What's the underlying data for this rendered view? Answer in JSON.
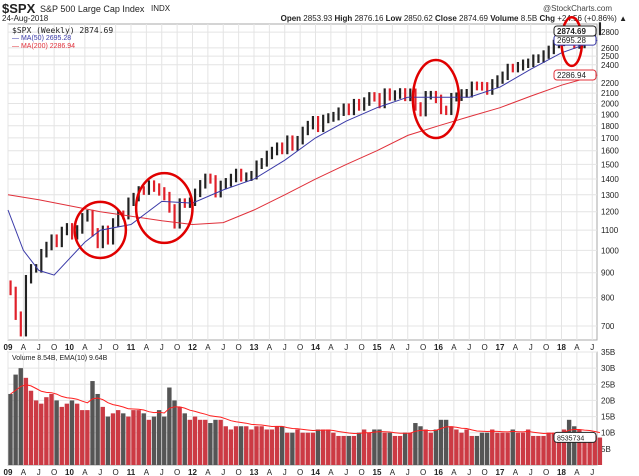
{
  "header": {
    "symbol": "$SPX",
    "name": "S&P 500 Large Cap Index",
    "exchange": "INDX",
    "date": "24-Aug-2018",
    "brand": "@StockCharts.com",
    "open_label": "Open",
    "open": "2853.93",
    "high_label": "High",
    "high": "2876.16",
    "low_label": "Low",
    "low": "2850.62",
    "close_label": "Close",
    "close": "2874.69",
    "volume_label": "Volume",
    "volume": "8.5B",
    "chg_label": "Chg",
    "chg": "+24.56 (+0.86%)"
  },
  "chart_data": [
    {
      "type": "line",
      "legend": [
        "$SPX (Weekly) 2874.69",
        "MA(50) 2695.28",
        "MA(200) 2286.94"
      ],
      "legend_placement": "top-left",
      "scale": "log",
      "ylim": [
        650,
        2950
      ],
      "grid": true,
      "yticks": [
        700,
        800,
        900,
        1000,
        1100,
        1200,
        1300,
        1400,
        1500,
        1600,
        1700,
        1800,
        1900,
        2000,
        2100,
        2200,
        2400,
        2500,
        2600,
        2800
      ],
      "xticks": [
        "09",
        "A",
        "J",
        "O",
        "10",
        "A",
        "J",
        "O",
        "11",
        "A",
        "J",
        "O",
        "12",
        "A",
        "J",
        "O",
        "13",
        "A",
        "J",
        "O",
        "14",
        "A",
        "J",
        "O",
        "15",
        "A",
        "J",
        "O",
        "16",
        "A",
        "J",
        "O",
        "17",
        "A",
        "J",
        "O",
        "18",
        "A",
        "J"
      ],
      "last_labels": {
        "price": "2874.69",
        "ma50": "2695.28",
        "ma200": "2286.94"
      },
      "colors": {
        "up": "#222222",
        "down": "#e0202a",
        "ma50": "#3a3aa8",
        "ma200": "#e0303a",
        "annotation": "#e00000"
      },
      "start": "2009-01",
      "closes": [
        826,
        735,
        680,
        873,
        919,
        919,
        987,
        1021,
        1057,
        1036,
        1096,
        1115,
        1074,
        1104,
        1169,
        1187,
        1089,
        1031,
        1102,
        1049,
        1141,
        1183,
        1181,
        1258,
        1286,
        1327,
        1326,
        1364,
        1345,
        1321,
        1292,
        1219,
        1131,
        1253,
        1247,
        1258,
        1312,
        1366,
        1408,
        1398,
        1310,
        1362,
        1379,
        1407,
        1441,
        1412,
        1416,
        1426,
        1498,
        1515,
        1569,
        1598,
        1631,
        1606,
        1686,
        1633,
        1682,
        1757,
        1806,
        1848,
        1783,
        1859,
        1872,
        1884,
        1924,
        1960,
        1931,
        2003,
        1972,
        2018,
        2068,
        2059,
        1995,
        2105,
        2068,
        2086,
        2107,
        2063,
        2104,
        1972,
        1920,
        2079,
        2080,
        2044,
        1940,
        1932,
        2060,
        2065,
        2097,
        2099,
        2174,
        2171,
        2168,
        2126,
        2199,
        2239,
        2279,
        2364,
        2363,
        2384,
        2412,
        2423,
        2470,
        2472,
        2519,
        2575,
        2648,
        2674,
        2824,
        2714,
        2641,
        2648,
        2705,
        2718,
        2816,
        2875
      ],
      "ma50": [
        [
          "2009-01",
          1210
        ],
        [
          "2009-04",
          1000
        ],
        [
          "2009-07",
          910
        ],
        [
          "2009-10",
          890
        ],
        [
          "2010-04",
          1040
        ],
        [
          "2010-07",
          1100
        ],
        [
          "2011-01",
          1130
        ],
        [
          "2011-07",
          1260
        ],
        [
          "2012-01",
          1250
        ],
        [
          "2012-07",
          1330
        ],
        [
          "2013-01",
          1400
        ],
        [
          "2013-07",
          1530
        ],
        [
          "2014-01",
          1700
        ],
        [
          "2014-07",
          1840
        ],
        [
          "2015-01",
          1960
        ],
        [
          "2015-07",
          2060
        ],
        [
          "2016-01",
          2060
        ],
        [
          "2016-07",
          2060
        ],
        [
          "2017-01",
          2160
        ],
        [
          "2017-07",
          2350
        ],
        [
          "2018-01",
          2540
        ],
        [
          "2018-08",
          2695.28
        ]
      ],
      "ma200": [
        [
          "2009-01",
          1300
        ],
        [
          "2009-07",
          1270
        ],
        [
          "2010-07",
          1200
        ],
        [
          "2011-07",
          1150
        ],
        [
          "2012-01",
          1130
        ],
        [
          "2012-07",
          1140
        ],
        [
          "2013-01",
          1210
        ],
        [
          "2013-07",
          1300
        ],
        [
          "2014-01",
          1400
        ],
        [
          "2014-07",
          1500
        ],
        [
          "2015-01",
          1600
        ],
        [
          "2015-07",
          1720
        ],
        [
          "2016-01",
          1800
        ],
        [
          "2016-07",
          1880
        ],
        [
          "2017-01",
          1960
        ],
        [
          "2017-07",
          2070
        ],
        [
          "2018-01",
          2180
        ],
        [
          "2018-08",
          2286.94
        ]
      ],
      "annotations": [
        {
          "shape": "ellipse",
          "from": "2010-02",
          "to": "2010-12",
          "low": 965,
          "high": 1257
        },
        {
          "shape": "ellipse",
          "from": "2011-02",
          "to": "2012-01",
          "low": 1036,
          "high": 1440
        },
        {
          "shape": "ellipse",
          "from": "2015-08",
          "to": "2016-05",
          "low": 1699,
          "high": 2455
        },
        {
          "shape": "ellipse",
          "from": "2018-01",
          "to": "2018-05",
          "low": 2387,
          "high": 3004
        }
      ]
    },
    {
      "type": "bar",
      "legend": "Volume 8.54B, EMA(10) 9.64B",
      "ylim": [
        0,
        35
      ],
      "unit": "B",
      "yticks": [
        "5B",
        "10B",
        "15B",
        "20B",
        "25B",
        "30B",
        "35B"
      ],
      "last_label": "8535734",
      "colors": {
        "up": "#cc3a44",
        "down": "#555555",
        "ema": "#ff2020"
      },
      "volumes": [
        22,
        28,
        30,
        27,
        23,
        20,
        19,
        21,
        22,
        20,
        18,
        19,
        20,
        19,
        17,
        17,
        26,
        22,
        18,
        15,
        16,
        17,
        16,
        15,
        17,
        17,
        16,
        14,
        15,
        17,
        15,
        24,
        20,
        18,
        16,
        14,
        15,
        14,
        14,
        13,
        14,
        14,
        12,
        11,
        12,
        12,
        12,
        11,
        12,
        12,
        11,
        11,
        12,
        12,
        10,
        10,
        11,
        10,
        10,
        10,
        11,
        11,
        11,
        10,
        9,
        9,
        9,
        9,
        10,
        11,
        10,
        11,
        11,
        10,
        10,
        9,
        9,
        10,
        10,
        13,
        12,
        11,
        10,
        11,
        14,
        14,
        12,
        11,
        10,
        11,
        9,
        9,
        10,
        10,
        11,
        10,
        10,
        10,
        11,
        10,
        10,
        11,
        9,
        9,
        9,
        10,
        10,
        10,
        11,
        14,
        12,
        11,
        10,
        10,
        9,
        8.5
      ]
    }
  ]
}
